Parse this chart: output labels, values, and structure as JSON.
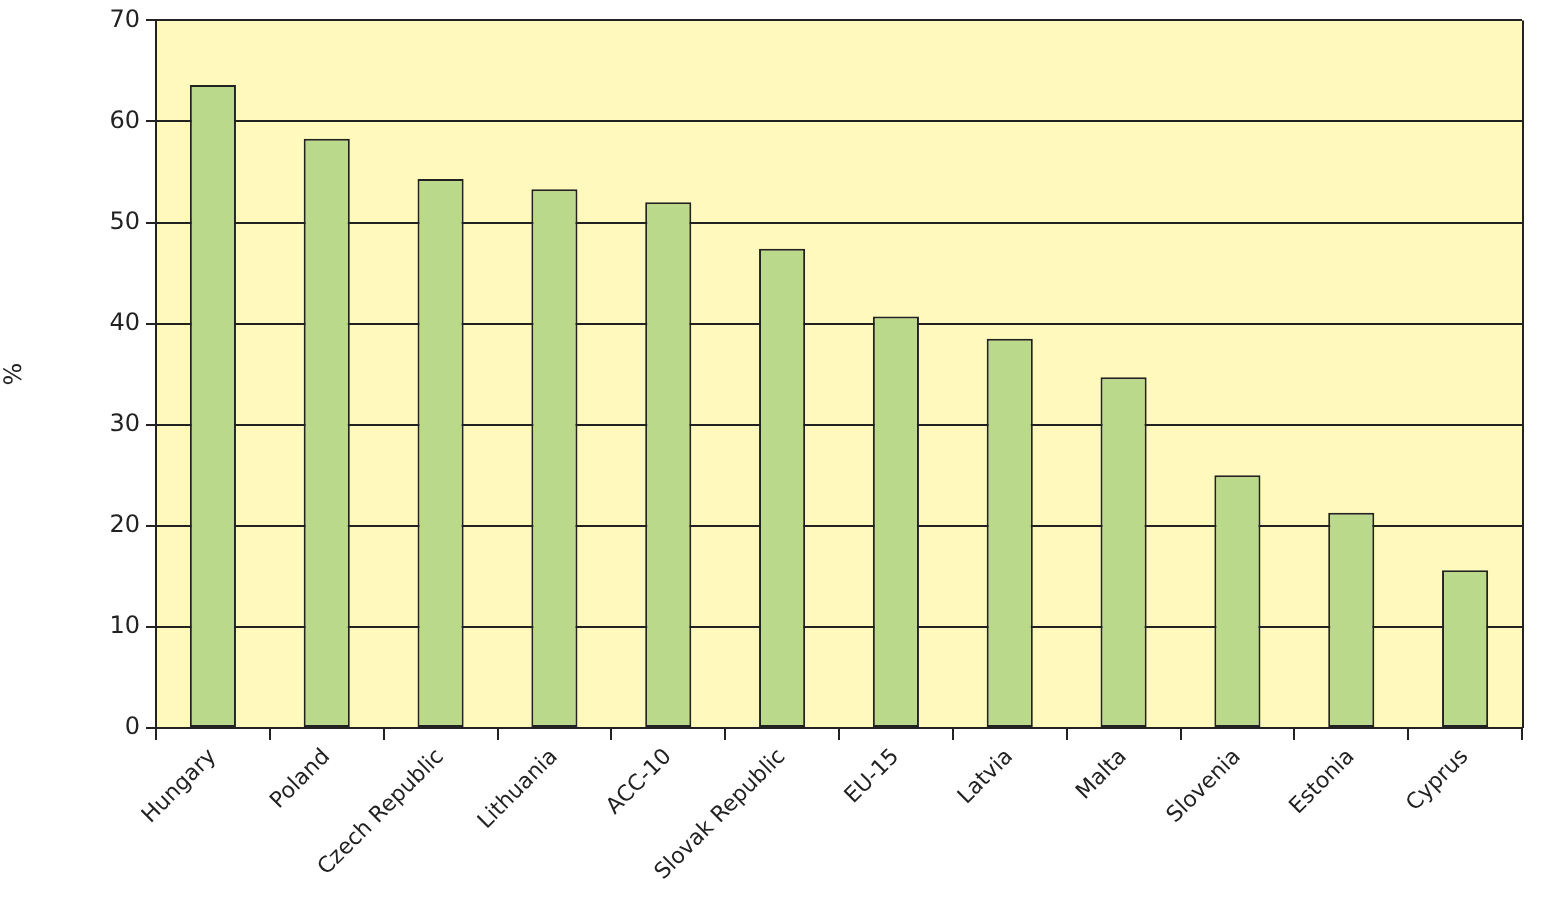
{
  "chart_data": {
    "type": "bar",
    "ylabel": "%",
    "categories": [
      "Hungary",
      "Poland",
      "Czech Republic",
      "Lithuania",
      "ACC-10",
      "Slovak Republic",
      "EU-15",
      "Latvia",
      "Malta",
      "Slovenia",
      "Estonia",
      "Cyprus"
    ],
    "values": [
      63.6,
      58.3,
      54.3,
      53.3,
      52.0,
      47.4,
      40.7,
      38.5,
      34.7,
      25.0,
      21.3,
      15.6
    ],
    "color": "#bbd98a",
    "ylim": [
      0,
      70
    ],
    "yticks": [
      0,
      10,
      20,
      30,
      40,
      50,
      60,
      70
    ],
    "grid": "y"
  }
}
